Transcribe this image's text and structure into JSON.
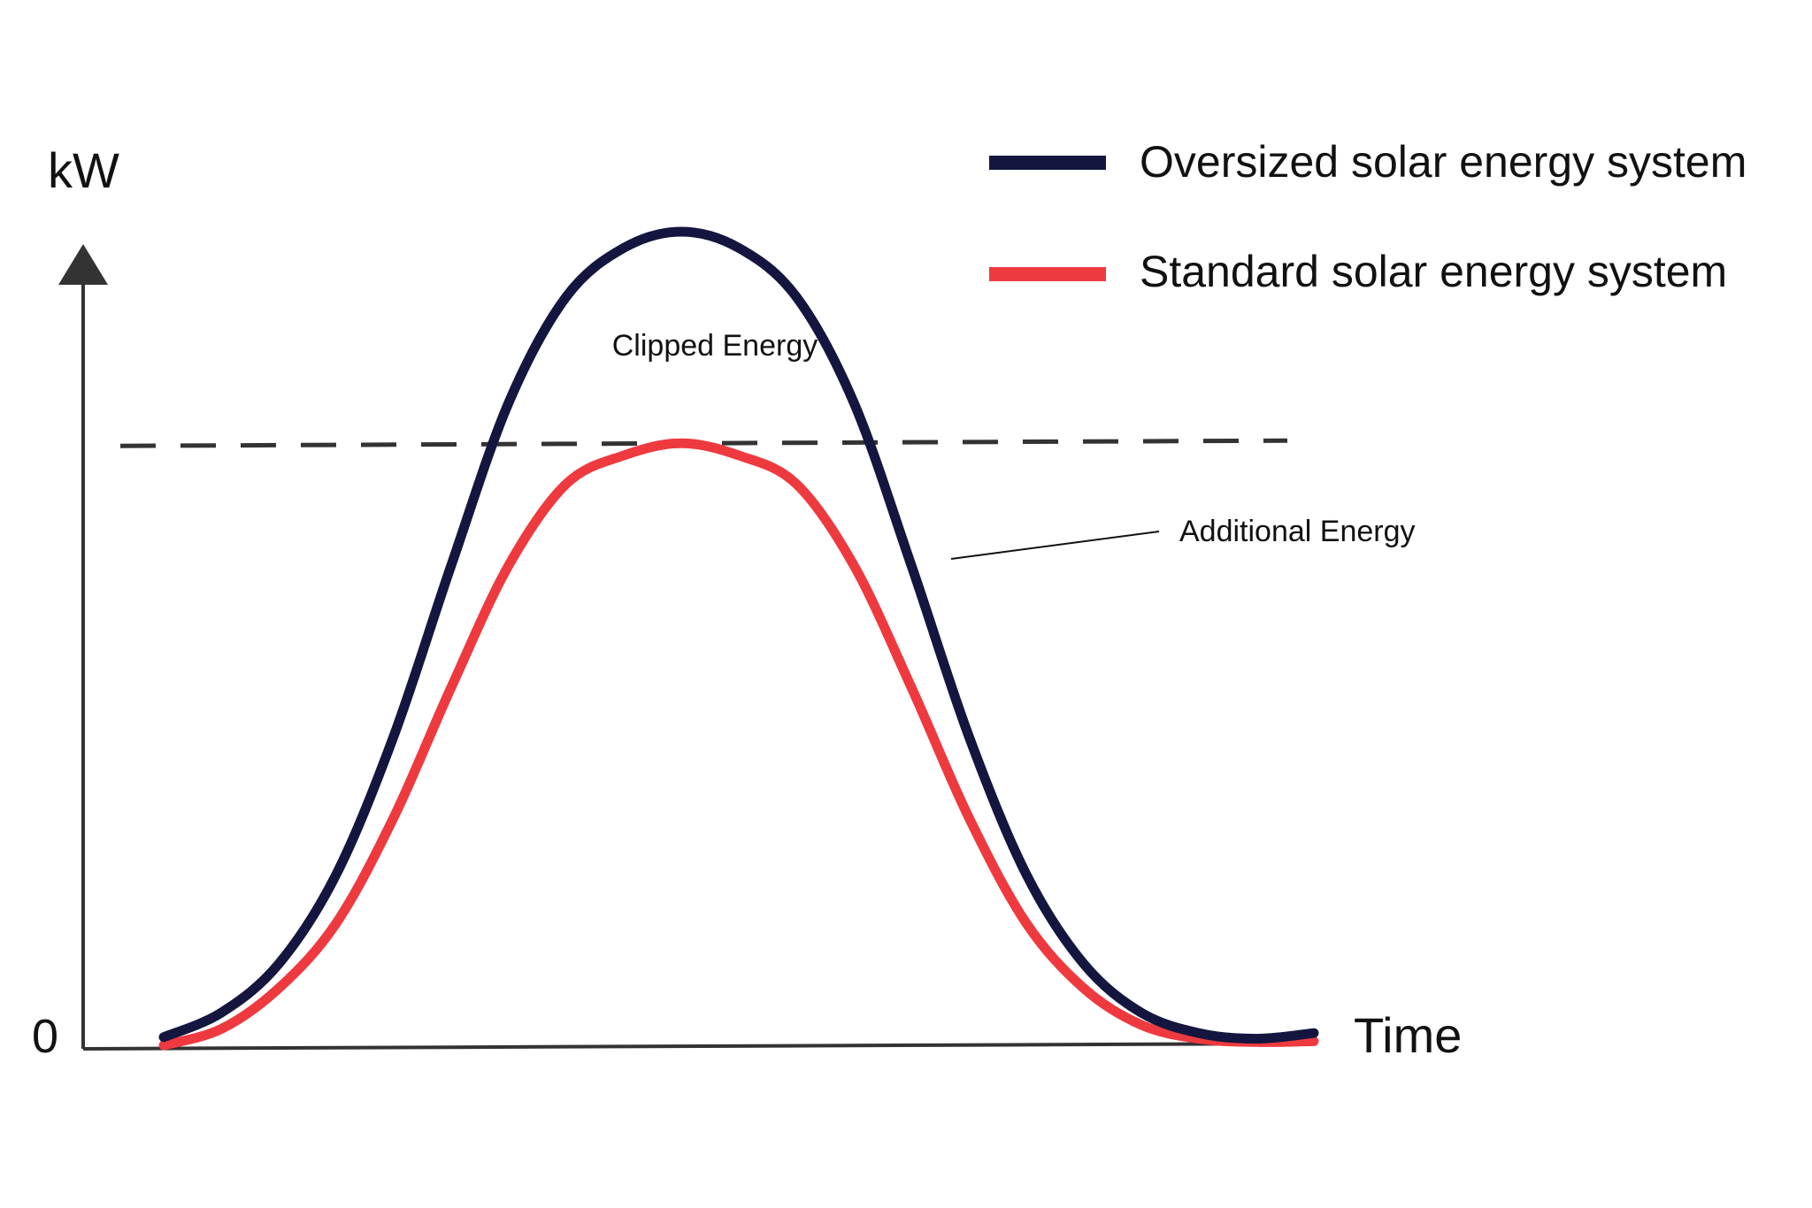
{
  "chart_data": {
    "type": "line",
    "title": "",
    "xlabel": "Time",
    "ylabel": "kW",
    "y_origin_label": "0",
    "x": [
      0,
      5,
      10,
      15,
      20,
      25,
      30,
      35,
      40,
      45,
      50,
      55,
      60,
      65,
      70,
      75,
      80,
      85,
      90,
      95,
      100
    ],
    "xlim": [
      0,
      100
    ],
    "ylim": [
      0,
      100
    ],
    "grid": false,
    "legend": "top-right",
    "series": [
      {
        "name": "Oversized solar energy system",
        "color": "#14163f",
        "values": [
          1,
          4,
          10,
          21,
          38,
          59,
          79,
          92,
          98,
          100,
          98,
          92,
          79,
          59,
          38,
          21,
          10,
          4,
          1.5,
          0.8,
          1.5
        ]
      },
      {
        "name": "Standard solar energy system",
        "color": "#ee3a3f",
        "values": [
          0,
          2,
          7,
          15,
          28,
          44,
          59,
          69,
          72.5,
          74,
          72.5,
          69,
          59,
          44,
          28,
          15,
          7,
          2.5,
          0.8,
          0.4,
          0.5
        ]
      }
    ],
    "threshold": {
      "value": 74,
      "style": "dashed",
      "color": "#333333"
    },
    "annotations": [
      {
        "text": "Clipped Energy"
      },
      {
        "text": "Additional Energy"
      }
    ]
  }
}
